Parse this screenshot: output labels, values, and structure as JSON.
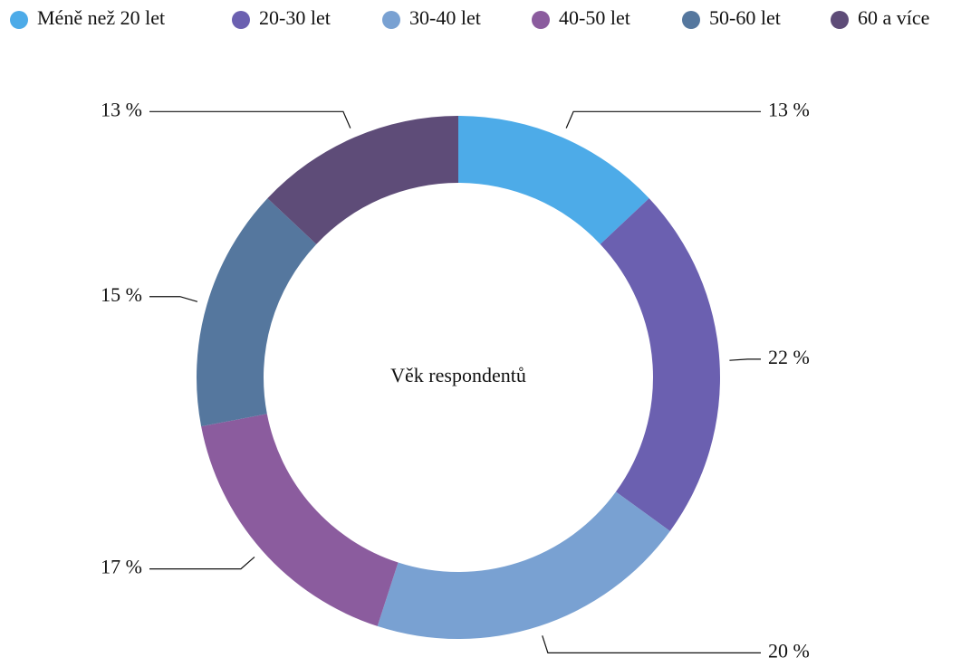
{
  "chart_data": {
    "type": "donut",
    "title": "Věk respondentů",
    "categories": [
      "Méně než 20 let",
      "20-30 let",
      "30-40 let",
      "40-50 let",
      "50-60 let",
      "60 a více"
    ],
    "values": [
      13,
      22,
      20,
      17,
      15,
      13
    ],
    "value_labels": [
      "13 %",
      "22 %",
      "20 %",
      "17 %",
      "15 %",
      "13 %"
    ],
    "colors": [
      "#4dabe8",
      "#6b60b0",
      "#79a1d2",
      "#8b5c9e",
      "#55779e",
      "#5e4c78"
    ],
    "legend": "top"
  }
}
